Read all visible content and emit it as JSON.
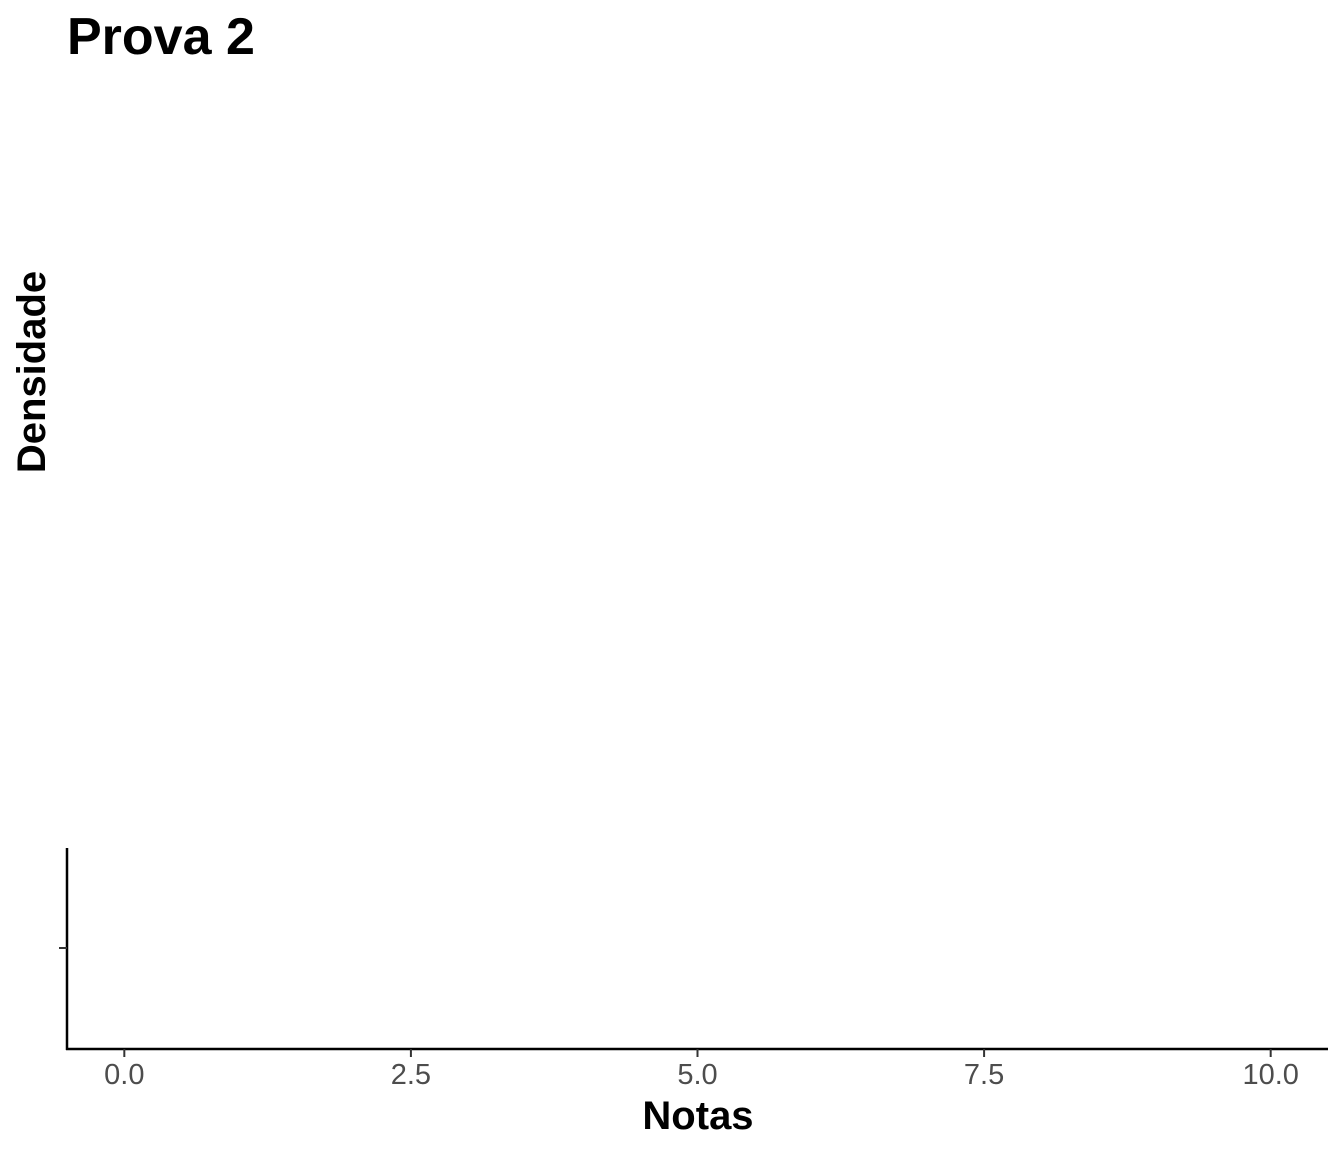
{
  "chart_data": {
    "type": "area",
    "title": "Prova 2",
    "xlabel": "Notas",
    "ylabel": "Densidade",
    "xlim": [
      -0.5,
      10.5
    ],
    "x_ticks": [
      0,
      2.5,
      5,
      7.5,
      10
    ],
    "x_tick_labels": [
      "0.0",
      "2.5",
      "5.0",
      "7.5",
      "10.0"
    ],
    "y_ticks": [
      0
    ],
    "y_tick_labels": [
      ""
    ],
    "series": [],
    "grid": false,
    "legend": "none",
    "colors": {
      "axis": "#000000",
      "tick_label": "#4d4d4d",
      "background": "#ffffff"
    }
  }
}
